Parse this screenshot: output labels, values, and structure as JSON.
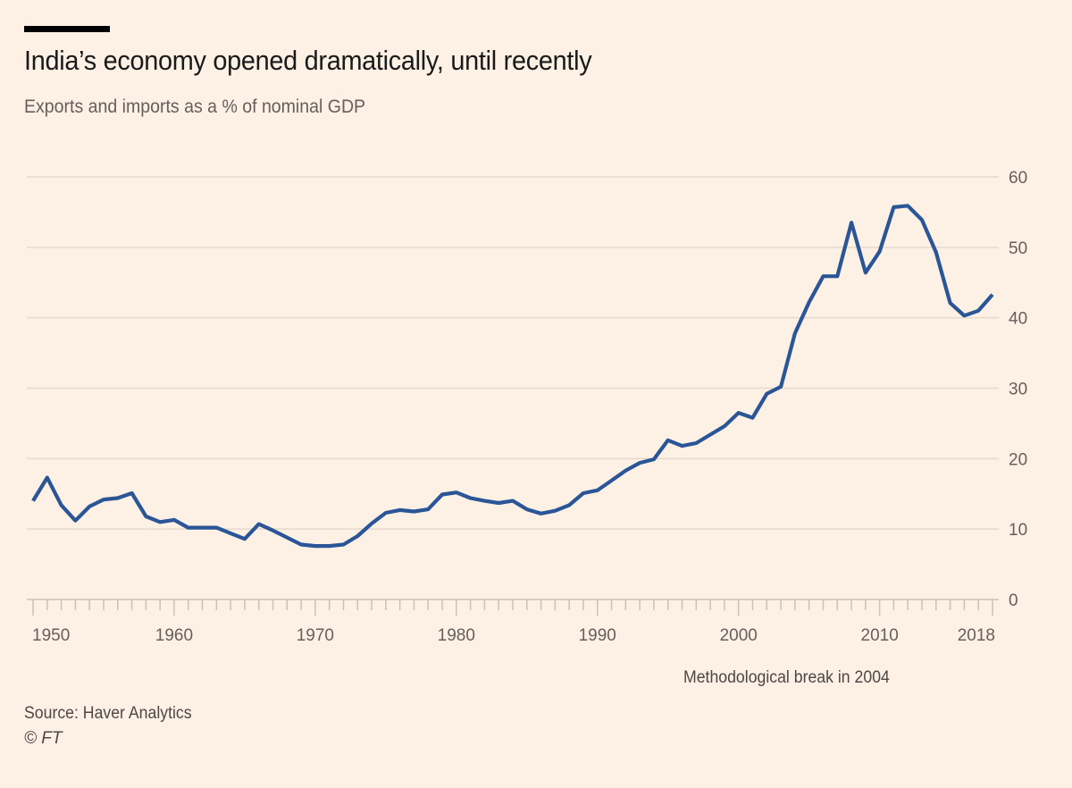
{
  "header": {
    "title": "India’s economy opened dramatically, until recently",
    "subtitle": "Exports and imports as a % of nominal GDP"
  },
  "footer": {
    "note": "Methodological break in 2004",
    "source": "Source: Haver Analytics",
    "copyright": "© FT"
  },
  "colors": {
    "background": "#fdf0e5",
    "line": "#2a5597",
    "grid": "#e6d9ce",
    "axis": "#ccc1b7",
    "text_muted": "#66605c"
  },
  "chart_data": {
    "type": "line",
    "title": "India’s economy opened dramatically, until recently",
    "subtitle": "Exports and imports as a % of nominal GDP",
    "xlabel": "",
    "ylabel": "",
    "xlim": [
      1950,
      2018
    ],
    "ylim": [
      0,
      60
    ],
    "yticks": [
      0,
      10,
      20,
      30,
      40,
      50,
      60
    ],
    "xtick_labels": [
      1950,
      1960,
      1970,
      1980,
      1990,
      2000,
      2010,
      2018
    ],
    "minor_xticks": "every year",
    "grid": true,
    "y_axis_position": "right",
    "annotation": "Methodological break in 2004",
    "series": [
      {
        "name": "Exports and imports (% of GDP)",
        "x": [
          1950,
          1951,
          1952,
          1953,
          1954,
          1955,
          1956,
          1957,
          1958,
          1959,
          1960,
          1961,
          1962,
          1963,
          1964,
          1965,
          1966,
          1967,
          1968,
          1969,
          1970,
          1971,
          1972,
          1973,
          1974,
          1975,
          1976,
          1977,
          1978,
          1979,
          1980,
          1981,
          1982,
          1983,
          1984,
          1985,
          1986,
          1987,
          1988,
          1989,
          1990,
          1991,
          1992,
          1993,
          1994,
          1995,
          1996,
          1997,
          1998,
          1999,
          2000,
          2001,
          2002,
          2003,
          2004,
          2005,
          2006,
          2007,
          2008,
          2009,
          2010,
          2011,
          2012,
          2013,
          2014,
          2015,
          2016,
          2017,
          2018
        ],
        "values": [
          14.0,
          17.3,
          13.4,
          11.2,
          13.2,
          14.2,
          14.4,
          15.1,
          11.8,
          11.0,
          11.3,
          10.2,
          10.2,
          10.2,
          9.4,
          8.6,
          10.7,
          9.8,
          8.8,
          7.8,
          7.6,
          7.6,
          7.8,
          9.0,
          10.8,
          12.3,
          12.7,
          12.5,
          12.8,
          14.9,
          15.2,
          14.4,
          14.0,
          13.7,
          14.0,
          12.8,
          12.2,
          12.6,
          13.4,
          15.1,
          15.5,
          16.9,
          18.3,
          19.4,
          19.9,
          22.6,
          21.8,
          22.2,
          23.4,
          24.6,
          26.5,
          25.8,
          29.2,
          30.2,
          37.8,
          42.2,
          45.9,
          45.9,
          53.5,
          46.4,
          49.4,
          55.7,
          55.9,
          53.9,
          49.3,
          42.1,
          40.3,
          41.0,
          43.3
        ]
      }
    ]
  }
}
